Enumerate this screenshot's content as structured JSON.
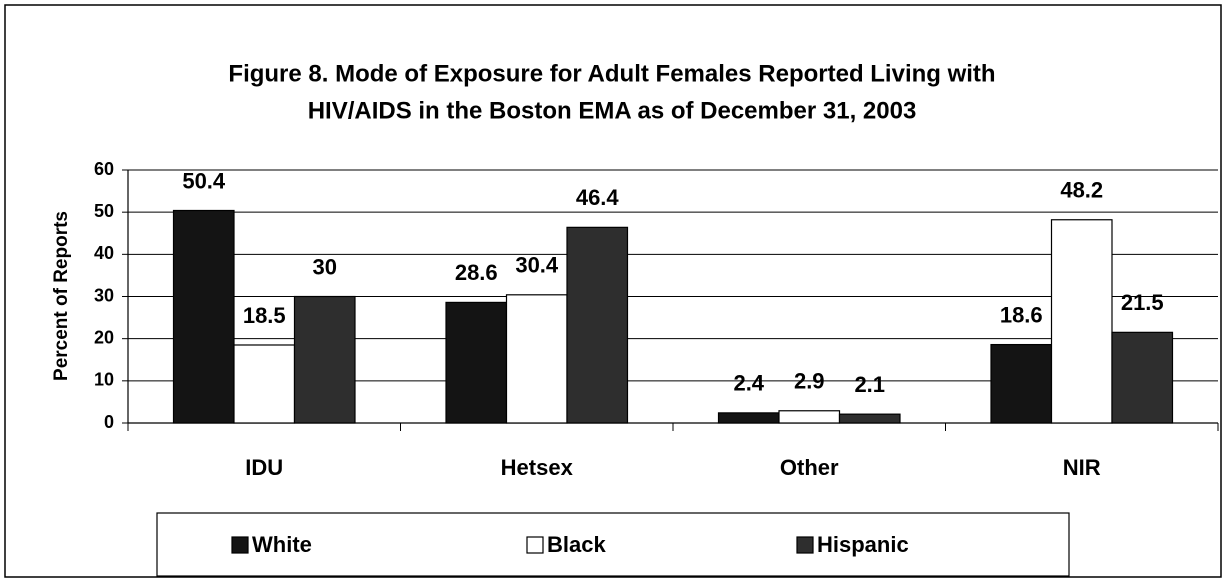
{
  "chart_data": {
    "type": "bar",
    "title": [
      "Figure 8. Mode of Exposure for Adult Females Reported Living with",
      "HIV/AIDS in the Boston EMA as of December 31, 2003"
    ],
    "y_label": "Percent of Reports",
    "categories": [
      "IDU",
      "Hetsex",
      "Other",
      "NIR"
    ],
    "series": [
      {
        "name": "White",
        "color": "#141414",
        "values": [
          50.4,
          28.6,
          2.4,
          18.6
        ]
      },
      {
        "name": "Black",
        "color": "#ffffff",
        "values": [
          18.5,
          30.4,
          2.9,
          48.2
        ]
      },
      {
        "name": "Hispanic",
        "color": "#2e2e2e",
        "values": [
          30,
          46.4,
          2.1,
          21.5
        ]
      }
    ],
    "ylim": [
      0,
      60
    ],
    "yticks": [
      0,
      10,
      20,
      30,
      40,
      50,
      60
    ],
    "grid": true,
    "legend": "bottom"
  }
}
